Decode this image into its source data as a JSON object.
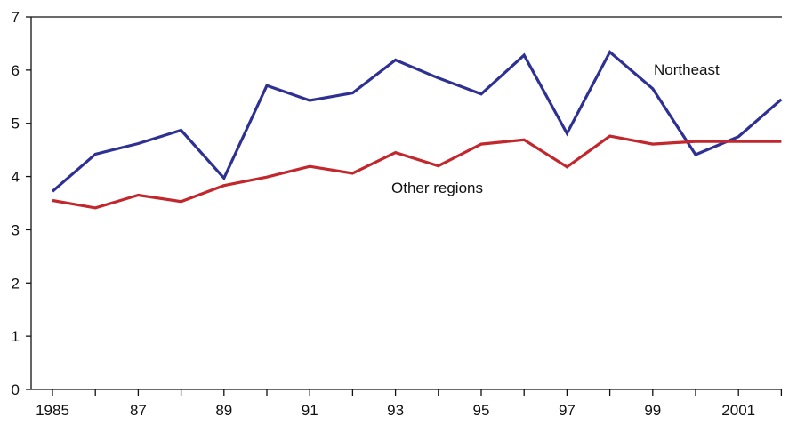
{
  "chart_data": {
    "type": "line",
    "title": "",
    "xlabel": "",
    "ylabel": "",
    "x": [
      1985,
      1986,
      1987,
      1988,
      1989,
      1990,
      1991,
      1992,
      1993,
      1994,
      1995,
      1996,
      1997,
      1998,
      1999,
      2000,
      2001,
      2002
    ],
    "x_tick_values": [
      1985,
      1987,
      1989,
      1991,
      1993,
      1995,
      1997,
      1999,
      2001
    ],
    "x_tick_labels": [
      "1985",
      "87",
      "89",
      "91",
      "93",
      "95",
      "97",
      "99",
      "2001"
    ],
    "ylim": [
      0,
      7
    ],
    "y_ticks": [
      0,
      1,
      2,
      3,
      4,
      5,
      6,
      7
    ],
    "grid": false,
    "series": [
      {
        "name": "Northeast",
        "color": "#2e3192",
        "values": [
          3.72,
          4.42,
          4.62,
          4.87,
          3.97,
          5.71,
          5.43,
          5.57,
          6.19,
          5.85,
          5.55,
          6.28,
          4.81,
          6.34,
          5.65,
          4.41,
          4.75,
          5.45
        ]
      },
      {
        "name": "Other regions",
        "color": "#c1272d",
        "values": [
          3.55,
          3.41,
          3.65,
          3.53,
          3.83,
          3.99,
          4.19,
          4.06,
          4.45,
          4.2,
          4.61,
          4.69,
          4.18,
          4.76,
          4.61,
          4.66,
          4.66,
          4.66
        ]
      }
    ]
  }
}
